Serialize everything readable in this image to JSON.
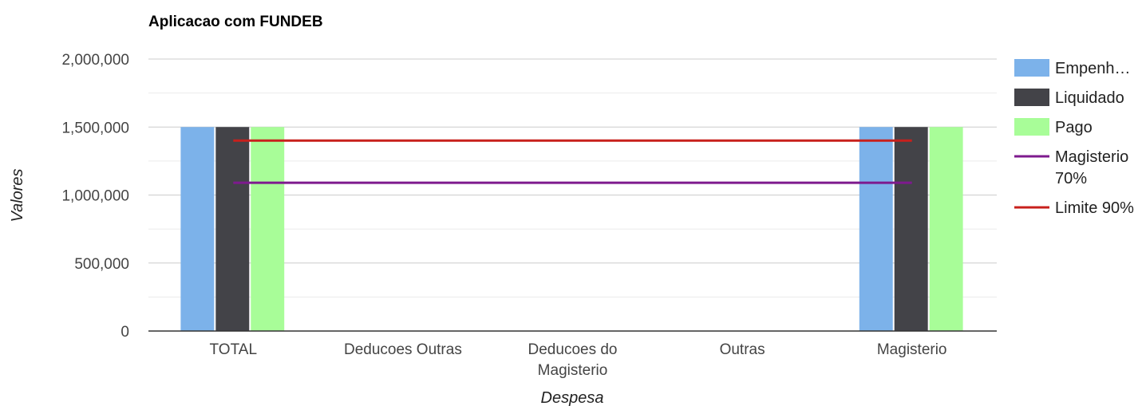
{
  "chart_data": {
    "type": "bar",
    "title": "Aplicacao com FUNDEB",
    "xlabel": "Despesa",
    "ylabel": "Valores",
    "ylim": [
      0,
      2000000
    ],
    "yticks": [
      0,
      500000,
      1000000,
      1500000,
      2000000
    ],
    "ytick_labels": [
      "0",
      "500,000",
      "1,000,000",
      "1,500,000",
      "2,000,000"
    ],
    "grid": true,
    "legend_position": "right",
    "categories": [
      [
        "TOTAL"
      ],
      [
        "Deducoes Outras"
      ],
      [
        "Deducoes do",
        "Magisterio"
      ],
      [
        "Outras"
      ],
      [
        "Magisterio"
      ]
    ],
    "series": [
      {
        "name": "Empenh…",
        "kind": "bar",
        "color": "#7cb2ea",
        "values": [
          1500000,
          0,
          0,
          0,
          1500000
        ]
      },
      {
        "name": "Liquidado",
        "kind": "bar",
        "color": "#434348",
        "values": [
          1500000,
          0,
          0,
          0,
          1500000
        ]
      },
      {
        "name": "Pago",
        "kind": "bar",
        "color": "#a8fd98",
        "values": [
          1500000,
          0,
          0,
          0,
          1500000
        ]
      },
      {
        "name": [
          "Magisterio",
          "70%"
        ],
        "kind": "line",
        "color": "#7e1a8e",
        "values": [
          1090000,
          1090000,
          1090000,
          1090000,
          1090000
        ]
      },
      {
        "name": [
          "Limite 90%"
        ],
        "kind": "line",
        "color": "#c8201c",
        "values": [
          1400000,
          1400000,
          1400000,
          1400000,
          1400000
        ]
      }
    ]
  }
}
